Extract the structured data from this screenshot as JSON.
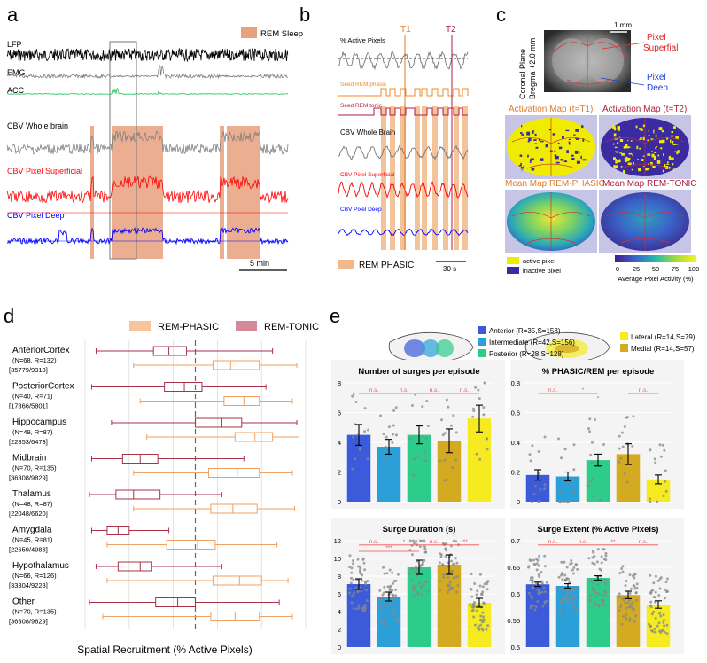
{
  "panel_labels": {
    "a": "a",
    "b": "b",
    "c": "c",
    "d": "d",
    "e": "e"
  },
  "panel_a": {
    "legend": "REM Sleep",
    "traces": [
      "LFP",
      "EMG",
      "ACC",
      "CBV Whole brain",
      "CBV Pixel Superficial",
      "CBV Pixel Deep"
    ],
    "scale": "5 min",
    "colors": {
      "lfp": "#000000",
      "emg": "#808080",
      "acc": "#22c55e",
      "whole": "#808080",
      "superficial": "#ff0000",
      "deep": "#0000ff",
      "rem": "#e9a07e"
    }
  },
  "panel_b": {
    "labels": [
      "% Active Pixels",
      "Seed REM phasic",
      "Seed REM tonic",
      "CBV Whole Brain",
      "CBV Pixel Superficial",
      "CBV Pixel Deep"
    ],
    "t1": "T1",
    "t2": "T2",
    "legend": "REM PHASIC",
    "scale": "30 s"
  },
  "panel_c": {
    "plane_lines": [
      "Coronal Plane",
      "Bregma +2.0 mm"
    ],
    "scale": "1 mm",
    "pixel_superficial": [
      "Pixel",
      "Superfial"
    ],
    "pixel_deep": [
      "Pixel",
      "Deep"
    ],
    "map_titles": [
      "Activation Map (t=T1)",
      "Activation Map (t=T2)",
      "Mean Map REM-PHASIC",
      "Mean Map REM-TONIC"
    ],
    "legend_active": "active pixel",
    "legend_inactive": "inactive pixel",
    "colorbar_ticks": [
      "0",
      "25",
      "50",
      "75",
      "100"
    ],
    "colorbar_label": "Average Pixel Activity (%)"
  },
  "panel_d": {
    "legend": [
      "REM-PHASIC",
      "REM-TONIC"
    ],
    "xlabel": "Spatial Recruitment (% Active Pixels)"
  },
  "panel_e": {
    "legend_left": [
      "Anterior (R=35,S=158)",
      "Intermediate (R=42,S=156)",
      "Posterior (R=28,S=128)"
    ],
    "legend_right": [
      "Lateral (R=14,S=79)",
      "Medial (R=14,S=57)"
    ],
    "colors": [
      "#3b5bdb",
      "#2ba0d8",
      "#2ecc8a",
      "#d4aa20",
      "#f5eb20"
    ]
  },
  "chart_data": [
    {
      "type": "box",
      "title": "Spatial Recruitment per region",
      "xlabel": "Spatial Recruitment (% Active Pixels)",
      "xlim": [
        0,
        100
      ],
      "reference_line": 50,
      "series_names": [
        "REM-TONIC",
        "REM-PHASIC"
      ],
      "regions": [
        {
          "name": "AnteriorCortex",
          "n": "(N=68, R=132)",
          "counts": "[35779/9318]",
          "tonic": {
            "min": 5,
            "q1": 31,
            "median": 38,
            "q3": 46,
            "max": 85
          },
          "phasic": {
            "min": 22,
            "q1": 58,
            "median": 66,
            "q3": 79,
            "max": 96
          }
        },
        {
          "name": "PosteriorCortex",
          "n": "(N=40, R=71)",
          "counts": "[17866/5801]",
          "tonic": {
            "min": 3,
            "q1": 36,
            "median": 45,
            "q3": 53,
            "max": 82
          },
          "phasic": {
            "min": 25,
            "q1": 63,
            "median": 72,
            "q3": 79,
            "max": 94
          }
        },
        {
          "name": "Hippocampus",
          "n": "(N=49, R=87)",
          "counts": "[22353/6473]",
          "tonic": {
            "min": 12,
            "q1": 50,
            "median": 62,
            "q3": 71,
            "max": 96
          },
          "phasic": {
            "min": 28,
            "q1": 68,
            "median": 77,
            "q3": 85,
            "max": 97
          }
        },
        {
          "name": "Midbrain",
          "n": "(N=70, R=135)",
          "counts": "[36308/9829]",
          "tonic": {
            "min": 3,
            "q1": 17,
            "median": 25,
            "q3": 33,
            "max": 72
          },
          "phasic": {
            "min": 22,
            "q1": 56,
            "median": 69,
            "q3": 79,
            "max": 94
          }
        },
        {
          "name": "Thalamus",
          "n": "(N=48, R=87)",
          "counts": "[22048/6620]",
          "tonic": {
            "min": 2,
            "q1": 14,
            "median": 22,
            "q3": 34,
            "max": 62
          },
          "phasic": {
            "min": 22,
            "q1": 57,
            "median": 67,
            "q3": 78,
            "max": 95
          }
        },
        {
          "name": "Amygdala",
          "n": "(N=45, R=81)",
          "counts": "[22659/4983]",
          "tonic": {
            "min": 3,
            "q1": 10,
            "median": 15,
            "q3": 20,
            "max": 38
          },
          "phasic": {
            "min": 10,
            "q1": 37,
            "median": 51,
            "q3": 59,
            "max": 87
          }
        },
        {
          "name": "Hypothalamus",
          "n": "(N=66, R=126)",
          "counts": "[33304/9228]",
          "tonic": {
            "min": 5,
            "q1": 15,
            "median": 25,
            "q3": 30,
            "max": 62
          },
          "phasic": {
            "min": 10,
            "q1": 58,
            "median": 70,
            "q3": 80,
            "max": 92
          }
        },
        {
          "name": "Other",
          "n": "(N=70, R=135)",
          "counts": "[36308/9829]",
          "tonic": {
            "min": 2,
            "q1": 32,
            "median": 42,
            "q3": 50,
            "max": 88
          },
          "phasic": {
            "min": 8,
            "q1": 57,
            "median": 68,
            "q3": 79,
            "max": 94
          }
        }
      ]
    },
    {
      "type": "bar",
      "title": "Number of surges per episode",
      "categories": [
        "Anterior",
        "Intermediate",
        "Posterior",
        "Medial",
        "Lateral"
      ],
      "values": [
        4.5,
        3.7,
        4.5,
        4.1,
        5.6
      ],
      "errors": [
        0.7,
        0.5,
        0.6,
        0.8,
        0.9
      ],
      "ylim": [
        0,
        8
      ],
      "yticks": [
        "0",
        "2",
        "4",
        "6",
        "8"
      ],
      "significance": [
        "n.s.",
        "n.s.",
        "n.s.",
        "n.s."
      ]
    },
    {
      "type": "bar",
      "title": "% PHASIC/REM per episode",
      "categories": [
        "Anterior",
        "Intermediate",
        "Posterior",
        "Medial",
        "Lateral"
      ],
      "values": [
        0.18,
        0.17,
        0.28,
        0.32,
        0.15
      ],
      "errors": [
        0.035,
        0.03,
        0.04,
        0.07,
        0.03
      ],
      "ylim": [
        0,
        0.8
      ],
      "yticks": [
        "0",
        "0.2",
        "0.4",
        "0.6",
        "0.8"
      ],
      "significance": [
        "n.s.",
        "*",
        "*",
        "n.s."
      ]
    },
    {
      "type": "bar",
      "title": "Surge Duration (s)",
      "categories": [
        "Anterior",
        "Intermediate",
        "Posterior",
        "Medial",
        "Lateral"
      ],
      "values": [
        7.1,
        5.7,
        9.0,
        9.3,
        5.0
      ],
      "errors": [
        0.6,
        0.5,
        0.8,
        1.1,
        0.5
      ],
      "ylim": [
        0,
        12
      ],
      "yticks": [
        "0",
        "2",
        "4",
        "6",
        "8",
        "10",
        "12"
      ],
      "significance": [
        "n.s.",
        "*",
        "***",
        "n.s.",
        "***"
      ]
    },
    {
      "type": "bar",
      "title": "Surge Extent (% Active Pixels)",
      "categories": [
        "Anterior",
        "Intermediate",
        "Posterior",
        "Medial",
        "Lateral"
      ],
      "values": [
        0.618,
        0.615,
        0.63,
        0.598,
        0.58
      ],
      "errors": [
        0.004,
        0.004,
        0.004,
        0.007,
        0.007
      ],
      "ylim": [
        0.5,
        0.7
      ],
      "yticks": [
        "0.5",
        "0.55",
        "0.6",
        "0.65",
        "0.7"
      ],
      "significance": [
        "n.s.",
        "n.s.",
        "**",
        "n.s."
      ]
    }
  ]
}
